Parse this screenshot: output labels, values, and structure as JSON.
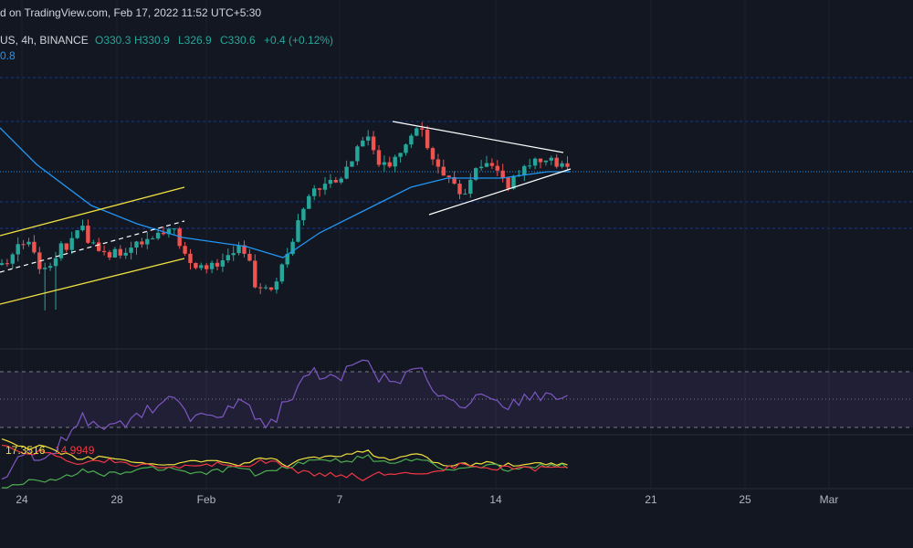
{
  "header": {
    "source": "d on TradingView.com, Feb 17, 2022 11:52 UTC+5:30"
  },
  "legend": {
    "symbol": "US, 4h, BINANCE",
    "open": "O330.3",
    "high": "H330.9",
    "low": "L326.9",
    "close": "C330.6",
    "change": "+0.4 (+0.12%)",
    "ma": "0.8"
  },
  "indicator": {
    "value1": "17.3516",
    "value2": "14.9949"
  },
  "time_axis": [
    "24",
    "28",
    "Feb",
    "7",
    "14",
    "21",
    "25",
    "Mar"
  ]
}
